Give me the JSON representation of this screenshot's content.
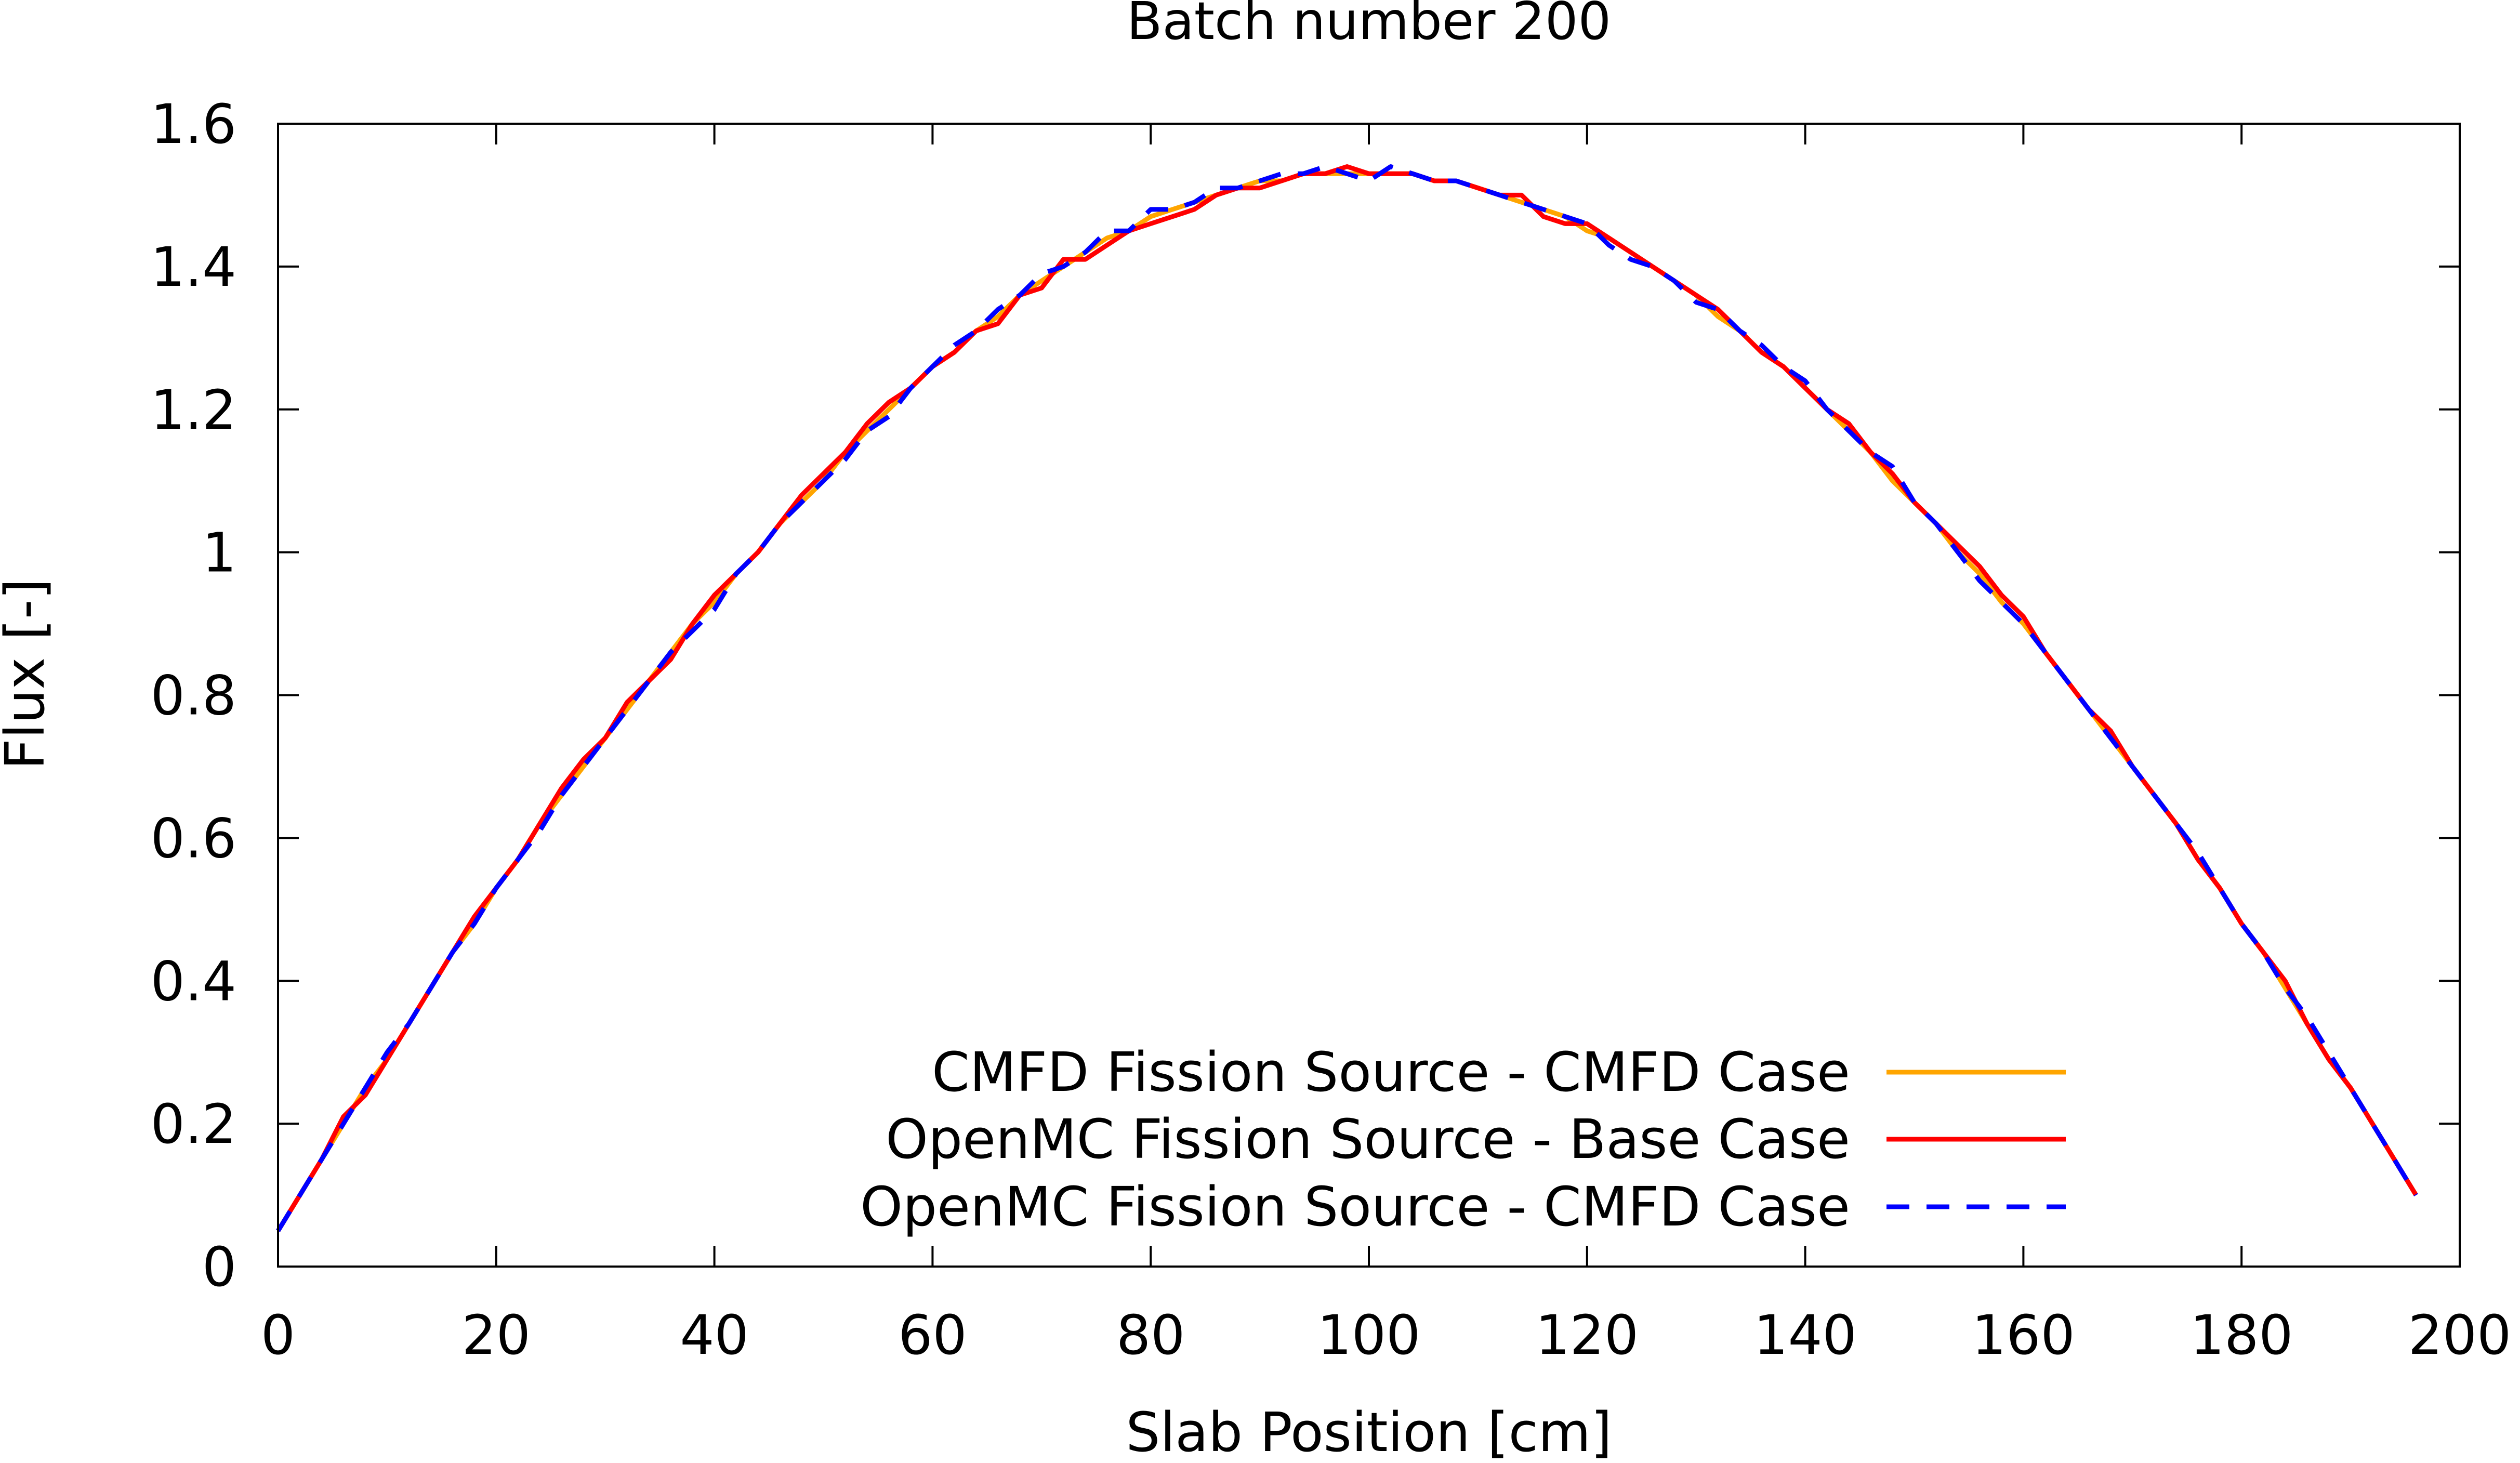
{
  "colors": {
    "cmfd_fission": "#ffa500",
    "openmc_base": "#ff0000",
    "openmc_cmfd": "#0000ff"
  },
  "chart_data": {
    "type": "line",
    "title": "Batch number 200",
    "xlabel": "Slab Position [cm]",
    "ylabel": "Flux [-]",
    "xlim": [
      0,
      200
    ],
    "ylim": [
      0,
      1.6
    ],
    "xticks": [
      0,
      20,
      40,
      60,
      80,
      100,
      120,
      140,
      160,
      180,
      200
    ],
    "xtick_labels": [
      "0",
      "20",
      "40",
      "60",
      "80",
      "100",
      "120",
      "140",
      "160",
      "180",
      "200"
    ],
    "yticks": [
      0,
      0.2,
      0.4,
      0.6,
      0.8,
      1.0,
      1.2,
      1.4,
      1.6
    ],
    "ytick_labels": [
      "0",
      "0.2",
      "0.4",
      "0.6",
      "0.8",
      "1",
      "1.2",
      "1.4",
      "1.6"
    ],
    "grid": false,
    "legend_position": "bottom-right",
    "x": [
      0,
      2,
      4,
      6,
      8,
      10,
      12,
      14,
      16,
      18,
      20,
      22,
      24,
      26,
      28,
      30,
      32,
      34,
      36,
      38,
      40,
      42,
      44,
      46,
      48,
      50,
      52,
      54,
      56,
      58,
      60,
      62,
      64,
      66,
      68,
      70,
      72,
      74,
      76,
      78,
      80,
      82,
      84,
      86,
      88,
      90,
      92,
      94,
      96,
      98,
      100,
      102,
      104,
      106,
      108,
      110,
      112,
      114,
      116,
      118,
      120,
      122,
      124,
      126,
      128,
      130,
      132,
      134,
      136,
      138,
      140,
      142,
      144,
      146,
      148,
      150,
      152,
      154,
      156,
      158,
      160,
      162,
      164,
      166,
      168,
      170,
      172,
      174,
      176,
      178,
      180,
      182,
      184,
      186,
      188,
      190,
      192,
      194,
      196
    ],
    "series": [
      {
        "name": "CMFD Fission Source - CMFD Case",
        "style": "solid",
        "values": [
          0.05,
          0.1,
          0.15,
          0.2,
          0.25,
          0.29,
          0.34,
          0.39,
          0.44,
          0.48,
          0.53,
          0.57,
          0.62,
          0.66,
          0.7,
          0.74,
          0.78,
          0.82,
          0.86,
          0.9,
          0.93,
          0.97,
          1.0,
          1.04,
          1.07,
          1.1,
          1.14,
          1.17,
          1.2,
          1.23,
          1.26,
          1.28,
          1.31,
          1.33,
          1.36,
          1.38,
          1.4,
          1.42,
          1.44,
          1.45,
          1.47,
          1.48,
          1.49,
          1.5,
          1.51,
          1.52,
          1.52,
          1.53,
          1.53,
          1.53,
          1.53,
          1.53,
          1.53,
          1.52,
          1.52,
          1.51,
          1.5,
          1.49,
          1.48,
          1.47,
          1.45,
          1.44,
          1.42,
          1.4,
          1.38,
          1.36,
          1.33,
          1.31,
          1.28,
          1.26,
          1.23,
          1.2,
          1.17,
          1.14,
          1.1,
          1.07,
          1.04,
          1.0,
          0.97,
          0.93,
          0.9,
          0.86,
          0.82,
          0.78,
          0.74,
          0.7,
          0.66,
          0.62,
          0.57,
          0.53,
          0.48,
          0.44,
          0.39,
          0.34,
          0.29,
          0.25,
          0.2,
          0.15,
          0.1
        ]
      },
      {
        "name": "OpenMC Fission Source - Base Case",
        "style": "solid",
        "values": [
          0.05,
          0.1,
          0.15,
          0.21,
          0.24,
          0.29,
          0.34,
          0.39,
          0.44,
          0.49,
          0.53,
          0.57,
          0.62,
          0.67,
          0.71,
          0.74,
          0.79,
          0.82,
          0.85,
          0.9,
          0.94,
          0.97,
          1.0,
          1.04,
          1.08,
          1.11,
          1.14,
          1.18,
          1.21,
          1.23,
          1.26,
          1.28,
          1.31,
          1.32,
          1.36,
          1.37,
          1.41,
          1.41,
          1.43,
          1.45,
          1.46,
          1.47,
          1.48,
          1.5,
          1.51,
          1.51,
          1.52,
          1.53,
          1.53,
          1.54,
          1.53,
          1.53,
          1.53,
          1.52,
          1.52,
          1.51,
          1.5,
          1.5,
          1.47,
          1.46,
          1.46,
          1.44,
          1.42,
          1.4,
          1.38,
          1.36,
          1.34,
          1.31,
          1.28,
          1.26,
          1.23,
          1.2,
          1.18,
          1.14,
          1.11,
          1.07,
          1.04,
          1.01,
          0.98,
          0.94,
          0.91,
          0.86,
          0.82,
          0.78,
          0.75,
          0.7,
          0.66,
          0.62,
          0.57,
          0.53,
          0.48,
          0.44,
          0.4,
          0.34,
          0.29,
          0.25,
          0.2,
          0.15,
          0.1
        ]
      },
      {
        "name": "OpenMC Fission Source - CMFD Case",
        "style": "dashed",
        "values": [
          0.05,
          0.1,
          0.15,
          0.2,
          0.25,
          0.3,
          0.34,
          0.39,
          0.44,
          0.48,
          0.53,
          0.57,
          0.61,
          0.66,
          0.7,
          0.74,
          0.78,
          0.82,
          0.86,
          0.89,
          0.92,
          0.97,
          1.0,
          1.04,
          1.07,
          1.1,
          1.13,
          1.17,
          1.19,
          1.23,
          1.26,
          1.29,
          1.31,
          1.34,
          1.36,
          1.39,
          1.4,
          1.42,
          1.45,
          1.45,
          1.48,
          1.48,
          1.49,
          1.51,
          1.51,
          1.52,
          1.53,
          1.53,
          1.54,
          1.53,
          1.52,
          1.54,
          1.53,
          1.52,
          1.52,
          1.51,
          1.5,
          1.49,
          1.48,
          1.47,
          1.46,
          1.43,
          1.41,
          1.4,
          1.38,
          1.35,
          1.34,
          1.31,
          1.29,
          1.26,
          1.24,
          1.2,
          1.17,
          1.14,
          1.12,
          1.07,
          1.04,
          1.0,
          0.96,
          0.93,
          0.9,
          0.86,
          0.82,
          0.78,
          0.74,
          0.7,
          0.66,
          0.62,
          0.58,
          0.53,
          0.48,
          0.44,
          0.39,
          0.35,
          0.3,
          0.25,
          0.2,
          0.15,
          0.1
        ]
      }
    ]
  }
}
